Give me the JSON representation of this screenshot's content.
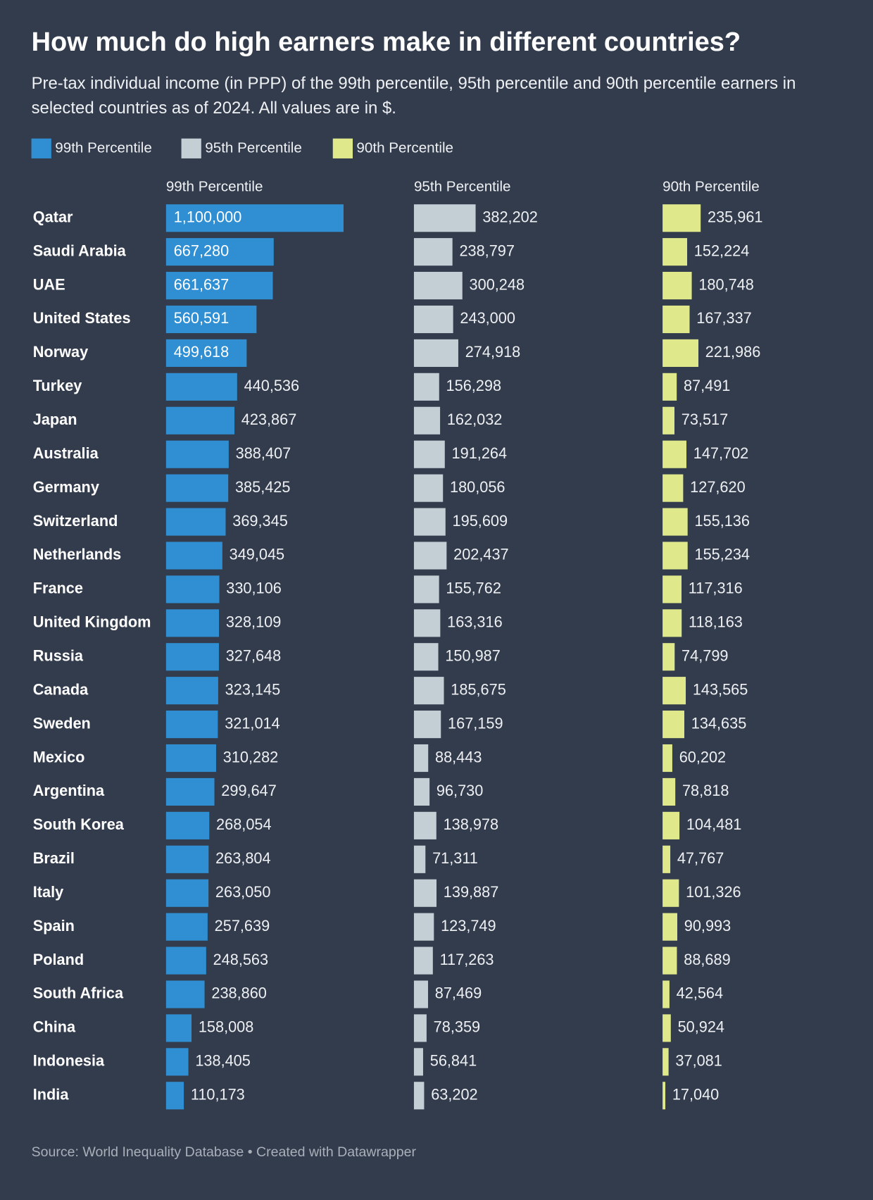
{
  "chart_data": {
    "type": "bar",
    "title": "How much do high earners make in different countries?",
    "subtitle": "Pre-tax individual income (in PPP) of the 99th percentile, 95th percentile and 90th percentile earners in selected countries as of 2024. All values are in $.",
    "source": "Source: World Inequality Database • Created with Datawrapper",
    "categories": [
      "Qatar",
      "Saudi Arabia",
      "UAE",
      "United States",
      "Norway",
      "Turkey",
      "Japan",
      "Australia",
      "Germany",
      "Switzerland",
      "Netherlands",
      "France",
      "United Kingdom",
      "Russia",
      "Canada",
      "Sweden",
      "Mexico",
      "Argentina",
      "South Korea",
      "Brazil",
      "Italy",
      "Spain",
      "Poland",
      "South Africa",
      "China",
      "Indonesia",
      "India"
    ],
    "series": [
      {
        "name": "99th Percentile",
        "color": "#2f8fd2",
        "values": [
          1100000,
          667280,
          661637,
          560591,
          499618,
          440536,
          423867,
          388407,
          385425,
          369345,
          349045,
          330106,
          328109,
          327648,
          323145,
          321014,
          310282,
          299647,
          268054,
          263804,
          263050,
          257639,
          248563,
          238860,
          158008,
          138405,
          110173
        ],
        "value_labels": [
          "1,100,000",
          "667,280",
          "661,637",
          "560,591",
          "499,618",
          "440,536",
          "423,867",
          "388,407",
          "385,425",
          "369,345",
          "349,045",
          "330,106",
          "328,109",
          "327,648",
          "323,145",
          "321,014",
          "310,282",
          "299,647",
          "268,054",
          "263,804",
          "263,050",
          "257,639",
          "248,563",
          "238,860",
          "158,008",
          "138,405",
          "110,173"
        ]
      },
      {
        "name": "95th Percentile",
        "color": "#c4ced5",
        "values": [
          382202,
          238797,
          300248,
          243000,
          274918,
          156298,
          162032,
          191264,
          180056,
          195609,
          202437,
          155762,
          163316,
          150987,
          185675,
          167159,
          88443,
          96730,
          138978,
          71311,
          139887,
          123749,
          117263,
          87469,
          78359,
          56841,
          63202
        ],
        "value_labels": [
          "382,202",
          "238,797",
          "300,248",
          "243,000",
          "274,918",
          "156,298",
          "162,032",
          "191,264",
          "180,056",
          "195,609",
          "202,437",
          "155,762",
          "163,316",
          "150,987",
          "185,675",
          "167,159",
          "88,443",
          "96,730",
          "138,978",
          "71,311",
          "139,887",
          "123,749",
          "117,263",
          "87,469",
          "78,359",
          "56,841",
          "63,202"
        ]
      },
      {
        "name": "90th Percentile",
        "color": "#dfe98b",
        "values": [
          235961,
          152224,
          180748,
          167337,
          221986,
          87491,
          73517,
          147702,
          127620,
          155136,
          155234,
          117316,
          118163,
          74799,
          143565,
          134635,
          60202,
          78818,
          104481,
          47767,
          101326,
          90993,
          88689,
          42564,
          50924,
          37081,
          17040
        ],
        "value_labels": [
          "235,961",
          "152,224",
          "180,748",
          "167,337",
          "221,986",
          "87,491",
          "73,517",
          "147,702",
          "127,620",
          "155,136",
          "155,234",
          "117,316",
          "118,163",
          "74,799",
          "143,565",
          "134,635",
          "60,202",
          "78,818",
          "104,481",
          "47,767",
          "101,326",
          "90,993",
          "88,689",
          "42,564",
          "50,924",
          "37,081",
          "17,040"
        ]
      }
    ]
  }
}
